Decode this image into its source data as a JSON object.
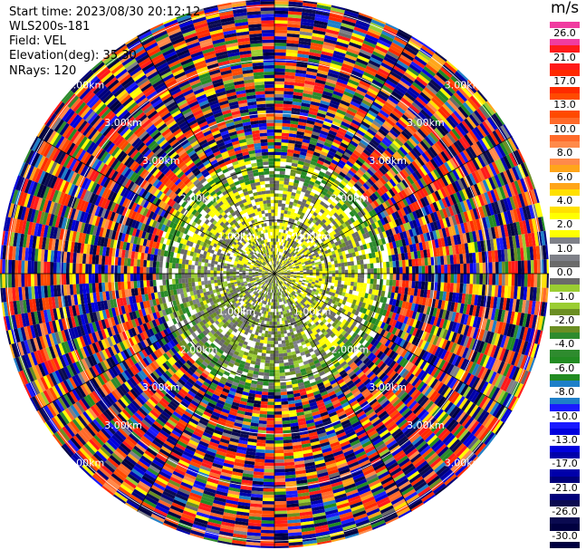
{
  "header": {
    "start_time": "Start time: 2023/08/30 20:12:12",
    "instrument": "WLS200s-181",
    "field": "Field: VEL",
    "elevation": "Elevation(deg): 35.30",
    "nrays": "NRays: 120"
  },
  "colorbar": {
    "unit": "m/s",
    "levels": [
      {
        "label": "26.0",
        "color": "#f03ca0"
      },
      {
        "label": "21.0",
        "color": "#ff1a1a"
      },
      {
        "label": "17.0",
        "color": "#ff2a00"
      },
      {
        "label": "13.0",
        "color": "#ff4a00"
      },
      {
        "label": "10.0",
        "color": "#ff6a2a"
      },
      {
        "label": "8.0",
        "color": "#ff8a4a"
      },
      {
        "label": "6.0",
        "color": "#ffa51a"
      },
      {
        "label": "4.0",
        "color": "#ffe000"
      },
      {
        "label": "2.0",
        "color": "#ffff00"
      },
      {
        "label": "1.0",
        "color": "#7e8088"
      },
      {
        "label": "0.0",
        "color": "#6a6a6a"
      },
      {
        "label": "-1.0",
        "color": "#9acd32"
      },
      {
        "label": "-2.0",
        "color": "#6b8e23"
      },
      {
        "label": "-4.0",
        "color": "#2e8b2e"
      },
      {
        "label": "-6.0",
        "color": "#228b22"
      },
      {
        "label": "-8.0",
        "color": "#1e7fc8"
      },
      {
        "label": "-10.0",
        "color": "#1a1aff"
      },
      {
        "label": "-13.0",
        "color": "#0000dd"
      },
      {
        "label": "-17.0",
        "color": "#0000aa"
      },
      {
        "label": "-21.0",
        "color": "#00007a"
      },
      {
        "label": "-26.0",
        "color": "#0a0a50"
      },
      {
        "label": "-30.0",
        "color": "#000040"
      }
    ]
  },
  "chart_data": {
    "type": "heatmap",
    "projection": "polar PPI",
    "field": "VEL",
    "unit": "m/s",
    "nrays": 120,
    "range_rings_km": [
      1.0,
      2.0,
      3.0
    ],
    "range_ring_labels": [
      "1.00km",
      "2.00km",
      "3.00km"
    ],
    "near_range_km": 2.2,
    "colormap_bounds": [
      -30.0,
      -26.0,
      -21.0,
      -17.0,
      -13.0,
      -10.0,
      -8.0,
      -6.0,
      -4.0,
      -2.0,
      -1.0,
      0.0,
      1.0,
      2.0,
      4.0,
      6.0,
      8.0,
      10.0,
      13.0,
      17.0,
      21.0,
      26.0
    ]
  }
}
